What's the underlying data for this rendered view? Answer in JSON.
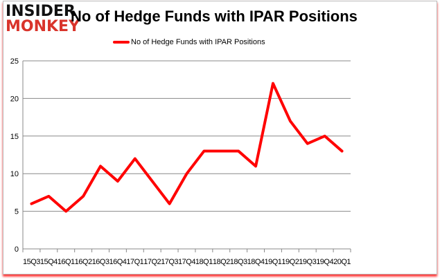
{
  "logo": {
    "line1": "INSIDER",
    "line2": "MONKEY"
  },
  "chart_data": {
    "type": "line",
    "title": "No of Hedge Funds with IPAR Positions",
    "categories": [
      "15Q3",
      "15Q4",
      "16Q1",
      "16Q2",
      "16Q3",
      "16Q4",
      "17Q1",
      "17Q2",
      "17Q3",
      "17Q4",
      "18Q1",
      "18Q2",
      "18Q3",
      "18Q4",
      "19Q1",
      "19Q2",
      "19Q3",
      "19Q4",
      "20Q1"
    ],
    "series": [
      {
        "name": "No of Hedge Funds with IPAR Positions",
        "color": "#ff0000",
        "values": [
          6,
          7,
          5,
          7,
          11,
          9,
          12,
          9,
          6,
          10,
          13,
          13,
          13,
          11,
          22,
          17,
          14,
          15,
          13
        ]
      }
    ],
    "ylim": [
      0,
      25
    ],
    "yticks": [
      0,
      5,
      10,
      15,
      20,
      25
    ],
    "grid": true,
    "legend": "top-center"
  }
}
